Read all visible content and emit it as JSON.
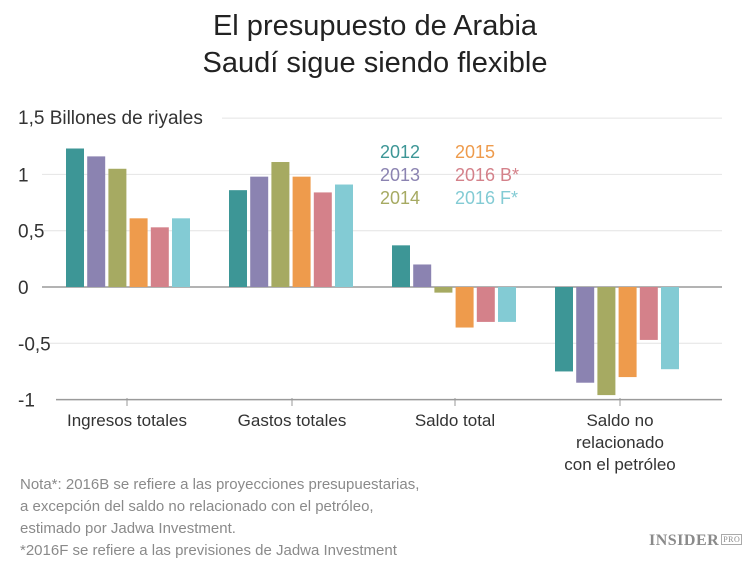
{
  "chart_data": {
    "type": "bar",
    "title": "El presupuesto de Arabia Saudí sigue siendo flexible",
    "title_lines": [
      "El presupuesto de Arabia",
      "Saudí sigue siendo flexible"
    ],
    "ylabel": "1,5 Billones de riyales",
    "ylim": [
      -1,
      1.5
    ],
    "yticks": [
      {
        "value": 1.5,
        "label": ""
      },
      {
        "value": 1,
        "label": "1"
      },
      {
        "value": 0.5,
        "label": "0,5"
      },
      {
        "value": 0,
        "label": "0"
      },
      {
        "value": -0.5,
        "label": "-0,5"
      },
      {
        "value": -1,
        "label": "-1"
      }
    ],
    "grid": true,
    "legend_placement": "top-center",
    "categories": [
      [
        "Ingresos totales"
      ],
      [
        "Gastos totales"
      ],
      [
        "Saldo total"
      ],
      [
        "Saldo no",
        "relacionado",
        "con el petróleo"
      ]
    ],
    "series": [
      {
        "name": "2012",
        "color": "#3d9696",
        "values": [
          1.23,
          0.86,
          0.37,
          -0.75
        ]
      },
      {
        "name": "2013",
        "color": "#8b83b1",
        "values": [
          1.16,
          0.98,
          0.2,
          -0.85
        ]
      },
      {
        "name": "2014",
        "color": "#a6aa62",
        "values": [
          1.05,
          1.11,
          -0.05,
          -0.96
        ]
      },
      {
        "name": "2015",
        "color": "#ee9b4c",
        "values": [
          0.61,
          0.98,
          -0.36,
          -0.8
        ]
      },
      {
        "name": "2016 B*",
        "color": "#d4818a",
        "values": [
          0.53,
          0.84,
          -0.31,
          -0.47
        ]
      },
      {
        "name": "2016 F*",
        "color": "#83cbd4",
        "values": [
          0.61,
          0.91,
          -0.31,
          -0.73
        ]
      }
    ]
  },
  "notes": [
    "Nota*: 2016B se refiere a las proyecciones presupuestarias,",
    "a excepción del saldo no relacionado con el petróleo,",
    "estimado por Jadwa Investment.",
    "*2016F se refiere a las previsiones de Jadwa Investment"
  ],
  "logo": {
    "text": "INSIDER",
    "badge": "PRO"
  }
}
